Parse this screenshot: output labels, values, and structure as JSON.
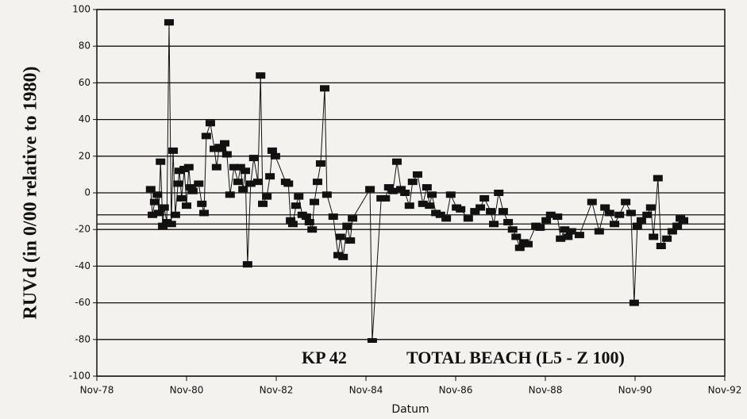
{
  "chart_data": {
    "type": "line",
    "ylabel": "RUVd  (in  0/00  relative to 1980)",
    "xlabel": "Datum",
    "annotations": [
      "KP 42",
      "TOTAL BEACH  (L5 - Z 100)"
    ],
    "xlim": [
      1978.83,
      1992.83
    ],
    "xticks": [
      {
        "value": 1978.83,
        "label": "Nov-78"
      },
      {
        "value": 1980.83,
        "label": "Nov-80"
      },
      {
        "value": 1982.83,
        "label": "Nov-82"
      },
      {
        "value": 1984.83,
        "label": "Nov-84"
      },
      {
        "value": 1986.83,
        "label": "Nov-86"
      },
      {
        "value": 1988.83,
        "label": "Nov-88"
      },
      {
        "value": 1990.83,
        "label": "Nov-90"
      },
      {
        "value": 1992.83,
        "label": "Nov-92"
      }
    ],
    "ylim": [
      -100,
      100
    ],
    "yticks": [
      -100,
      -80,
      -60,
      -40,
      -20,
      0,
      20,
      40,
      60,
      80,
      100
    ],
    "grid": true,
    "hlines": [
      -12,
      -17
    ],
    "series": [
      {
        "color": "#111111",
        "x": [
          1980.03,
          1980.07,
          1980.12,
          1980.18,
          1980.21,
          1980.25,
          1980.3,
          1980.33,
          1980.39,
          1980.44,
          1980.49,
          1980.53,
          1980.58,
          1980.64,
          1980.67,
          1980.72,
          1980.78,
          1980.83,
          1980.88,
          1980.92,
          1980.97,
          1981.1,
          1981.17,
          1981.22,
          1981.27,
          1981.36,
          1981.45,
          1981.5,
          1981.56,
          1981.61,
          1981.68,
          1981.73,
          1981.8,
          1981.89,
          1981.98,
          1982.03,
          1982.09,
          1982.14,
          1982.19,
          1982.26,
          1982.33,
          1982.42,
          1982.48,
          1982.53,
          1982.62,
          1982.69,
          1982.74,
          1982.81,
          1983.04,
          1983.1,
          1983.15,
          1983.2,
          1983.27,
          1983.33,
          1983.41,
          1983.5,
          1983.57,
          1983.63,
          1983.68,
          1983.75,
          1983.82,
          1983.91,
          1983.96,
          1984.1,
          1984.21,
          1984.26,
          1984.32,
          1984.41,
          1984.48,
          1984.53,
          1984.92,
          1984.97,
          1985.17,
          1985.26,
          1985.34,
          1985.43,
          1985.52,
          1985.61,
          1985.7,
          1985.8,
          1985.87,
          1985.98,
          1986.1,
          1986.19,
          1986.25,
          1986.3,
          1986.39,
          1986.49,
          1986.62,
          1986.72,
          1986.85,
          1986.94,
          1987.11,
          1987.26,
          1987.38,
          1987.47,
          1987.61,
          1987.68,
          1987.79,
          1987.89,
          1988.0,
          1988.1,
          1988.18,
          1988.26,
          1988.35,
          1988.44,
          1988.62,
          1988.71,
          1988.85,
          1988.95,
          1989.1,
          1989.17,
          1989.26,
          1989.33,
          1989.41,
          1989.59,
          1989.87,
          1990.03,
          1990.16,
          1990.26,
          1990.37,
          1990.48,
          1990.62,
          1990.74,
          1990.81,
          1990.88,
          1990.97,
          1991.1,
          1991.18,
          1991.24,
          1991.34,
          1991.41,
          1991.54,
          1991.66,
          1991.77,
          1991.84,
          1991.91
        ],
        "values": [
          2,
          -12,
          -5,
          -1,
          -11,
          17,
          -18,
          -8,
          -16,
          93,
          -17,
          23,
          -12,
          5,
          12,
          -3,
          13,
          -7,
          14,
          3,
          1,
          5,
          -6,
          -11,
          31,
          38,
          24,
          14,
          25,
          24,
          27,
          21,
          -1,
          14,
          6,
          14,
          2,
          12,
          -39,
          5,
          19,
          6,
          64,
          -6,
          -2,
          9,
          23,
          20,
          6,
          5,
          -15,
          -17,
          -7,
          -2,
          -12,
          -13,
          -16,
          -20,
          -5,
          6,
          16,
          57,
          -1,
          -13,
          -34,
          -24,
          -35,
          -18,
          -26,
          -14,
          2,
          -81,
          -3,
          -3,
          3,
          1,
          17,
          2,
          0,
          -7,
          6,
          10,
          -6,
          3,
          -7,
          -1,
          -11,
          -12,
          -14,
          -1,
          -8,
          -9,
          -14,
          -10,
          -8,
          -3,
          -10,
          -17,
          0,
          -10,
          -16,
          -20,
          -24,
          -30,
          -27,
          -28,
          -18,
          -19,
          -15,
          -12,
          -13,
          -25,
          -20,
          -24,
          -21,
          -23,
          -5,
          -21,
          -8,
          -11,
          -17,
          -12,
          -5,
          -11,
          -60,
          -18,
          -15,
          -12,
          -8,
          -24,
          8,
          -29,
          -25,
          -21,
          -18,
          -14,
          -15
        ]
      }
    ]
  }
}
